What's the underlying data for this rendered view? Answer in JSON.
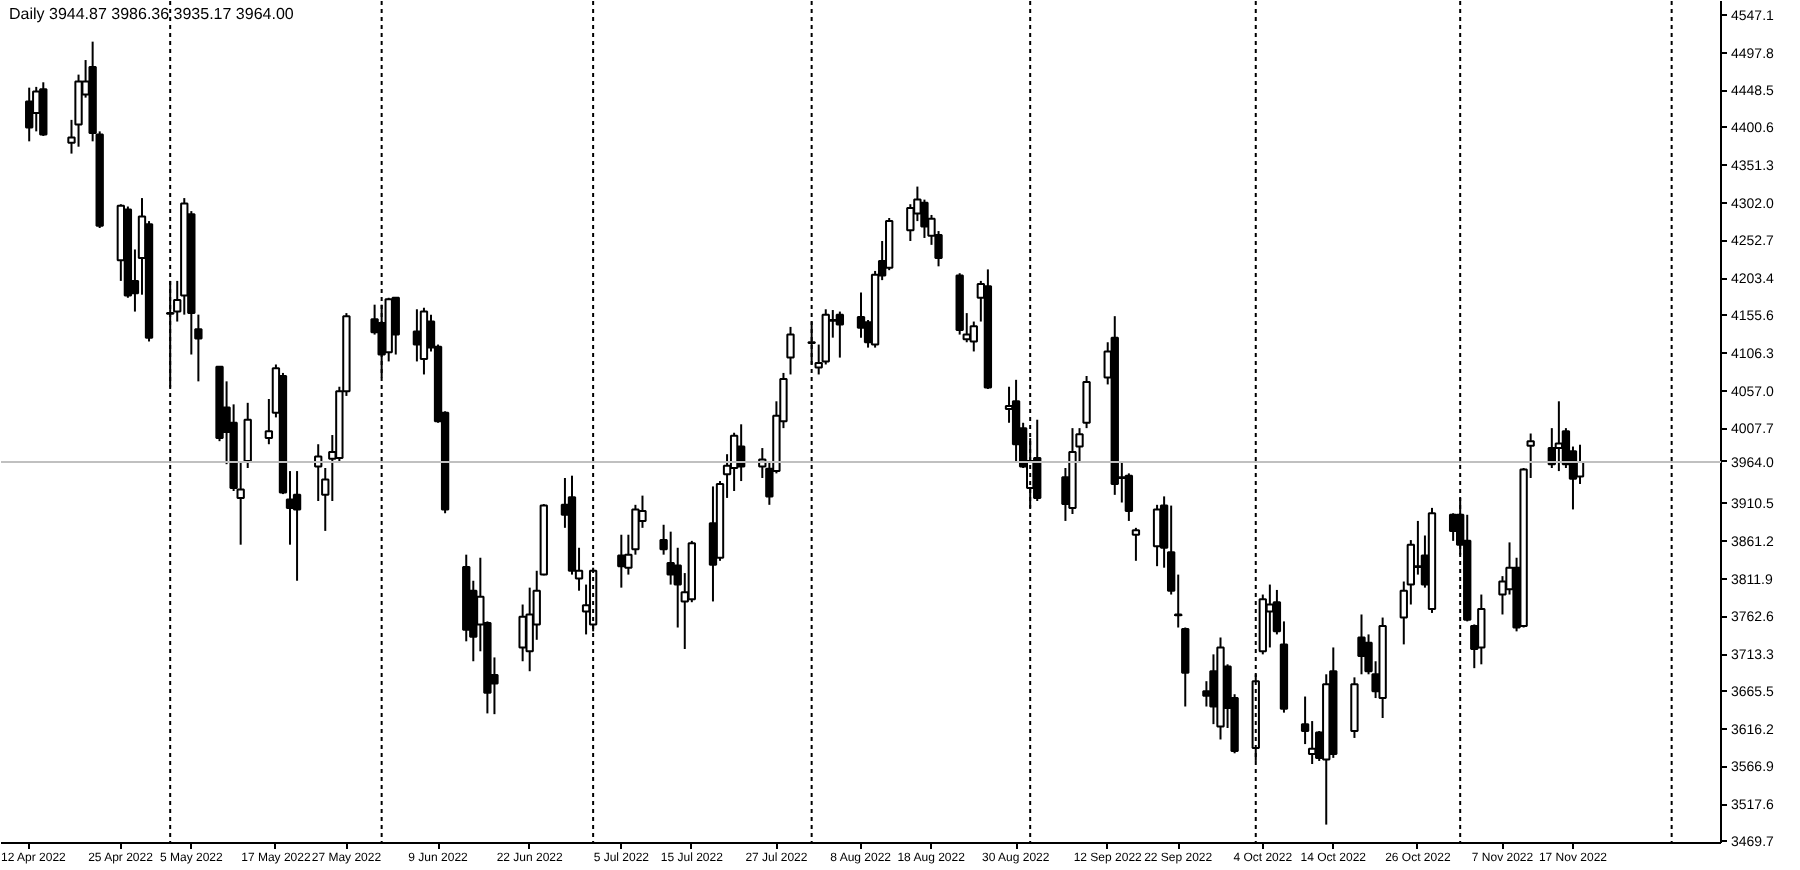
{
  "chart_data": {
    "type": "candlestick",
    "title": "Daily  3944.87 3986.36 3935.17 3964.00",
    "x": [
      "2022-04-12",
      "2022-04-13",
      "2022-04-14",
      "2022-04-18",
      "2022-04-19",
      "2022-04-20",
      "2022-04-21",
      "2022-04-22",
      "2022-04-25",
      "2022-04-26",
      "2022-04-27",
      "2022-04-28",
      "2022-04-29",
      "2022-05-02",
      "2022-05-03",
      "2022-05-04",
      "2022-05-05",
      "2022-05-06",
      "2022-05-09",
      "2022-05-10",
      "2022-05-11",
      "2022-05-12",
      "2022-05-13",
      "2022-05-16",
      "2022-05-17",
      "2022-05-18",
      "2022-05-19",
      "2022-05-20",
      "2022-05-23",
      "2022-05-24",
      "2022-05-25",
      "2022-05-26",
      "2022-05-27",
      "2022-05-31",
      "2022-06-01",
      "2022-06-02",
      "2022-06-03",
      "2022-06-06",
      "2022-06-07",
      "2022-06-08",
      "2022-06-09",
      "2022-06-10",
      "2022-06-13",
      "2022-06-14",
      "2022-06-15",
      "2022-06-16",
      "2022-06-17",
      "2022-06-21",
      "2022-06-22",
      "2022-06-23",
      "2022-06-24",
      "2022-06-27",
      "2022-06-28",
      "2022-06-29",
      "2022-06-30",
      "2022-07-01",
      "2022-07-05",
      "2022-07-06",
      "2022-07-07",
      "2022-07-08",
      "2022-07-11",
      "2022-07-12",
      "2022-07-13",
      "2022-07-14",
      "2022-07-15",
      "2022-07-18",
      "2022-07-19",
      "2022-07-20",
      "2022-07-21",
      "2022-07-22",
      "2022-07-25",
      "2022-07-26",
      "2022-07-27",
      "2022-07-28",
      "2022-07-29",
      "2022-08-01",
      "2022-08-02",
      "2022-08-03",
      "2022-08-04",
      "2022-08-05",
      "2022-08-08",
      "2022-08-09",
      "2022-08-10",
      "2022-08-11",
      "2022-08-12",
      "2022-08-15",
      "2022-08-16",
      "2022-08-17",
      "2022-08-18",
      "2022-08-19",
      "2022-08-22",
      "2022-08-23",
      "2022-08-24",
      "2022-08-25",
      "2022-08-26",
      "2022-08-29",
      "2022-08-30",
      "2022-08-31",
      "2022-09-01",
      "2022-09-02",
      "2022-09-06",
      "2022-09-07",
      "2022-09-08",
      "2022-09-09",
      "2022-09-12",
      "2022-09-13",
      "2022-09-14",
      "2022-09-15",
      "2022-09-16",
      "2022-09-19",
      "2022-09-20",
      "2022-09-21",
      "2022-09-22",
      "2022-09-23",
      "2022-09-26",
      "2022-09-27",
      "2022-09-28",
      "2022-09-29",
      "2022-09-30",
      "2022-10-03",
      "2022-10-04",
      "2022-10-05",
      "2022-10-06",
      "2022-10-07",
      "2022-10-10",
      "2022-10-11",
      "2022-10-12",
      "2022-10-13",
      "2022-10-14",
      "2022-10-17",
      "2022-10-18",
      "2022-10-19",
      "2022-10-20",
      "2022-10-21",
      "2022-10-24",
      "2022-10-25",
      "2022-10-26",
      "2022-10-27",
      "2022-10-28",
      "2022-10-31",
      "2022-11-01",
      "2022-11-02",
      "2022-11-03",
      "2022-11-04",
      "2022-11-07",
      "2022-11-08",
      "2022-11-09",
      "2022-11-10",
      "2022-11-11",
      "2022-11-14",
      "2022-11-15",
      "2022-11-16",
      "2022-11-17",
      "2022-11-18"
    ],
    "ohlc": [
      [
        4434,
        4452,
        4382,
        4400
      ],
      [
        4419,
        4453,
        4395,
        4447
      ],
      [
        4450,
        4459,
        4389,
        4391
      ],
      [
        4380,
        4410,
        4366,
        4387
      ],
      [
        4404,
        4469,
        4375,
        4460
      ],
      [
        4443,
        4488,
        4439,
        4460
      ],
      [
        4479,
        4512,
        4382,
        4393
      ],
      [
        4391,
        4395,
        4269,
        4272
      ],
      [
        4227,
        4300,
        4200,
        4298
      ],
      [
        4293,
        4297,
        4178,
        4181
      ],
      [
        4200,
        4241,
        4160,
        4184
      ],
      [
        4230,
        4308,
        4182,
        4284
      ],
      [
        4274,
        4278,
        4121,
        4126
      ],
      [
        4158,
        4200,
        4061,
        4157
      ],
      [
        4160,
        4200,
        4147,
        4175
      ],
      [
        4181,
        4308,
        4156,
        4301
      ],
      [
        4287,
        4291,
        4104,
        4158
      ],
      [
        4137,
        4156,
        4069,
        4125
      ],
      [
        4088,
        4088,
        3991,
        3995
      ],
      [
        4035,
        4069,
        3961,
        4003
      ],
      [
        4015,
        4039,
        3926,
        3930
      ],
      [
        3917,
        3965,
        3856,
        3928
      ],
      [
        3965,
        4041,
        3956,
        4019
      ],
      [
        3995,
        4046,
        3987,
        4004
      ],
      [
        4028,
        4091,
        4022,
        4086
      ],
      [
        4076,
        4080,
        3922,
        3924
      ],
      [
        3915,
        3952,
        3856,
        3904
      ],
      [
        3921,
        3952,
        3809,
        3902
      ],
      [
        3958,
        3987,
        3913,
        3971
      ],
      [
        3921,
        3956,
        3874,
        3941
      ],
      [
        3968,
        3999,
        3913,
        3977
      ],
      [
        3969,
        4062,
        3965,
        4056
      ],
      [
        4056,
        4158,
        4050,
        4154
      ],
      [
        4150,
        4169,
        4130,
        4133
      ],
      [
        4145,
        4169,
        4074,
        4104
      ],
      [
        4107,
        4178,
        4095,
        4176
      ],
      [
        4178,
        4178,
        4104,
        4130
      ],
      [
        4134,
        4163,
        4095,
        4117
      ],
      [
        4098,
        4165,
        4078,
        4160
      ],
      [
        4147,
        4156,
        4108,
        4113
      ],
      [
        4114,
        4117,
        4015,
        4017
      ],
      [
        4028,
        4030,
        3897,
        3902
      ],
      [
        3827,
        3843,
        3730,
        3745
      ],
      [
        3796,
        3809,
        3704,
        3736
      ],
      [
        3752,
        3839,
        3717,
        3788
      ],
      [
        3754,
        3756,
        3636,
        3663
      ],
      [
        3686,
        3709,
        3635,
        3675
      ],
      [
        3722,
        3778,
        3704,
        3762
      ],
      [
        3717,
        3800,
        3691,
        3765
      ],
      [
        3752,
        3822,
        3732,
        3796
      ],
      [
        3817,
        3909,
        3816,
        3907
      ],
      [
        3908,
        3943,
        3878,
        3895
      ],
      [
        3918,
        3946,
        3817,
        3822
      ],
      [
        3812,
        3852,
        3796,
        3822
      ],
      [
        3769,
        3804,
        3739,
        3777
      ],
      [
        3752,
        3826,
        3743,
        3822
      ],
      [
        3842,
        3869,
        3800,
        3828
      ],
      [
        3826,
        3869,
        3817,
        3843
      ],
      [
        3850,
        3908,
        3843,
        3902
      ],
      [
        3887,
        3920,
        3878,
        3900
      ],
      [
        3862,
        3882,
        3843,
        3850
      ],
      [
        3832,
        3873,
        3804,
        3817
      ],
      [
        3829,
        3852,
        3748,
        3804
      ],
      [
        3782,
        3819,
        3720,
        3794
      ],
      [
        3785,
        3861,
        3781,
        3858
      ],
      [
        3884,
        3932,
        3782,
        3830
      ],
      [
        3839,
        3939,
        3835,
        3935
      ],
      [
        3948,
        3974,
        3917,
        3959
      ],
      [
        3956,
        4002,
        3926,
        3998
      ],
      [
        3984,
        4013,
        3939,
        3958
      ],
      [
        3958,
        3982,
        3943,
        3967
      ],
      [
        3955,
        3965,
        3908,
        3919
      ],
      [
        3952,
        4043,
        3949,
        4024
      ],
      [
        4017,
        4080,
        4008,
        4072
      ],
      [
        4100,
        4140,
        4078,
        4130
      ],
      [
        4120,
        4147,
        4091,
        4119
      ],
      [
        4087,
        4117,
        4078,
        4093
      ],
      [
        4095,
        4163,
        4091,
        4156
      ],
      [
        4149,
        4162,
        4126,
        4148
      ],
      [
        4156,
        4160,
        4100,
        4143
      ],
      [
        4153,
        4185,
        4126,
        4139
      ],
      [
        4146,
        4149,
        4113,
        4120
      ],
      [
        4117,
        4213,
        4113,
        4208
      ],
      [
        4226,
        4252,
        4201,
        4207
      ],
      [
        4217,
        4282,
        4214,
        4278
      ],
      [
        4266,
        4300,
        4252,
        4295
      ],
      [
        4288,
        4323,
        4278,
        4306
      ],
      [
        4302,
        4306,
        4256,
        4271
      ],
      [
        4259,
        4286,
        4247,
        4281
      ],
      [
        4260,
        4265,
        4219,
        4230
      ],
      [
        4207,
        4210,
        4130,
        4136
      ],
      [
        4124,
        4158,
        4120,
        4130
      ],
      [
        4121,
        4147,
        4108,
        4141
      ],
      [
        4178,
        4200,
        4147,
        4196
      ],
      [
        4193,
        4215,
        4059,
        4061
      ],
      [
        4033,
        4062,
        4015,
        4037
      ],
      [
        4043,
        4071,
        3965,
        3987
      ],
      [
        4008,
        4015,
        3956,
        3958
      ],
      [
        3930,
        3995,
        3904,
        3965
      ],
      [
        3969,
        4019,
        3913,
        3917
      ],
      [
        3944,
        3956,
        3887,
        3909
      ],
      [
        3904,
        4008,
        3896,
        3977
      ],
      [
        3984,
        4008,
        3965,
        4000
      ],
      [
        4015,
        4076,
        4008,
        4068
      ],
      [
        4074,
        4120,
        4065,
        4108
      ],
      [
        4126,
        4154,
        3921,
        3935
      ],
      [
        3944,
        3965,
        3911,
        3943
      ],
      [
        3946,
        3949,
        3887,
        3900
      ],
      [
        3869,
        3878,
        3835,
        3875
      ],
      [
        3854,
        3908,
        3828,
        3902
      ],
      [
        3907,
        3919,
        3826,
        3852
      ],
      [
        3846,
        3907,
        3791,
        3796
      ],
      [
        3765,
        3817,
        3748,
        3764
      ],
      [
        3746,
        3748,
        3645,
        3689
      ],
      [
        3665,
        3678,
        3645,
        3659
      ],
      [
        3691,
        3713,
        3622,
        3645
      ],
      [
        3619,
        3735,
        3602,
        3722
      ],
      [
        3697,
        3700,
        3617,
        3643
      ],
      [
        3656,
        3661,
        3584,
        3587
      ],
      [
        3591,
        3687,
        3574,
        3678
      ],
      [
        3717,
        3791,
        3713,
        3785
      ],
      [
        3769,
        3804,
        3722,
        3778
      ],
      [
        3781,
        3797,
        3739,
        3743
      ],
      [
        3726,
        3756,
        3637,
        3642
      ],
      [
        3622,
        3658,
        3596,
        3613
      ],
      [
        3583,
        3626,
        3570,
        3590
      ],
      [
        3611,
        3613,
        3574,
        3578
      ],
      [
        3576,
        3687,
        3491,
        3674
      ],
      [
        3691,
        3722,
        3578,
        3583
      ],
      [
        3613,
        3683,
        3604,
        3674
      ],
      [
        3735,
        3765,
        3687,
        3711
      ],
      [
        3728,
        3739,
        3687,
        3691
      ],
      [
        3687,
        3704,
        3656,
        3665
      ],
      [
        3656,
        3761,
        3630,
        3750
      ],
      [
        3761,
        3808,
        3726,
        3796
      ],
      [
        3804,
        3862,
        3778,
        3856
      ],
      [
        3828,
        3887,
        3817,
        3827
      ],
      [
        3842,
        3868,
        3800,
        3804
      ],
      [
        3772,
        3904,
        3767,
        3897
      ],
      [
        3895,
        3897,
        3861,
        3874
      ],
      [
        3895,
        3917,
        3843,
        3856
      ],
      [
        3861,
        3895,
        3756,
        3758
      ],
      [
        3750,
        3752,
        3695,
        3720
      ],
      [
        3722,
        3791,
        3700,
        3772
      ],
      [
        3791,
        3815,
        3765,
        3808
      ],
      [
        3798,
        3859,
        3791,
        3826
      ],
      [
        3826,
        3839,
        3743,
        3748
      ],
      [
        3750,
        3956,
        3748,
        3954
      ],
      [
        3985,
        4001,
        3943,
        3991
      ],
      [
        3982,
        4008,
        3956,
        3961
      ],
      [
        3982,
        4043,
        3952,
        3988
      ],
      [
        4004,
        4008,
        3956,
        3961
      ],
      [
        3978,
        3984,
        3902,
        3942
      ],
      [
        3944.87,
        3986.36,
        3935.17,
        3964.0
      ]
    ],
    "xlim": [
      "2022-04-08",
      "2022-12-08"
    ],
    "xticks": [
      {
        "value": "2022-04-12",
        "label": "12 Apr 2022"
      },
      {
        "value": "2022-04-25",
        "label": "25 Apr 2022"
      },
      {
        "value": "2022-05-05",
        "label": "5 May 2022"
      },
      {
        "value": "2022-05-17",
        "label": "17 May 2022"
      },
      {
        "value": "2022-05-27",
        "label": "27 May 2022"
      },
      {
        "value": "2022-06-09",
        "label": "9 Jun 2022"
      },
      {
        "value": "2022-06-22",
        "label": "22 Jun 2022"
      },
      {
        "value": "2022-07-05",
        "label": "5 Jul 2022"
      },
      {
        "value": "2022-07-15",
        "label": "15 Jul 2022"
      },
      {
        "value": "2022-07-27",
        "label": "27 Jul 2022"
      },
      {
        "value": "2022-08-08",
        "label": "8 Aug 2022"
      },
      {
        "value": "2022-08-18",
        "label": "18 Aug 2022"
      },
      {
        "value": "2022-08-30",
        "label": "30 Aug 2022"
      },
      {
        "value": "2022-09-12",
        "label": "12 Sep 2022"
      },
      {
        "value": "2022-09-22",
        "label": "22 Sep 2022"
      },
      {
        "value": "2022-10-04",
        "label": "4 Oct 2022"
      },
      {
        "value": "2022-10-14",
        "label": "14 Oct 2022"
      },
      {
        "value": "2022-10-26",
        "label": "26 Oct 2022"
      },
      {
        "value": "2022-11-07",
        "label": "7 Nov 2022"
      },
      {
        "value": "2022-11-17",
        "label": "17 Nov 2022"
      }
    ],
    "ylim": [
      3467,
      4565
    ],
    "yticks": [
      4547.1,
      4497.8,
      4448.5,
      4400.6,
      4351.3,
      {
        "value": 4302.0,
        "label": "4302.0"
      },
      4252.7,
      4203.4,
      4155.6,
      4106.3,
      {
        "value": 4057.0,
        "label": "4057.0"
      },
      4007.7,
      3910.5,
      3861.2,
      3811.9,
      3762.6,
      3713.3,
      3665.5,
      3616.2,
      3566.9,
      3517.6,
      3469.7
    ],
    "ref_lines": [
      {
        "axis": "x",
        "value": "2022-05-02",
        "label": null,
        "color": "#000000",
        "line_style": "dotted"
      },
      {
        "axis": "x",
        "value": "2022-06-01",
        "label": null,
        "color": "#000000",
        "line_style": "dotted"
      },
      {
        "axis": "x",
        "value": "2022-07-01",
        "label": null,
        "color": "#000000",
        "line_style": "dotted"
      },
      {
        "axis": "x",
        "value": "2022-08-01",
        "label": null,
        "color": "#000000",
        "line_style": "dotted"
      },
      {
        "axis": "x",
        "value": "2022-09-01",
        "label": null,
        "color": "#000000",
        "line_style": "dotted"
      },
      {
        "axis": "x",
        "value": "2022-10-03",
        "label": null,
        "color": "#000000",
        "line_style": "dotted"
      },
      {
        "axis": "x",
        "value": "2022-11-01",
        "label": null,
        "color": "#000000",
        "line_style": "dotted"
      },
      {
        "axis": "x",
        "value": "2022-12-01",
        "label": null,
        "color": "#000000",
        "line_style": "dotted"
      },
      {
        "axis": "y",
        "value": 3964.0,
        "label": "3964.0",
        "color": "#c0c0c0",
        "line_style": "solid"
      }
    ]
  }
}
